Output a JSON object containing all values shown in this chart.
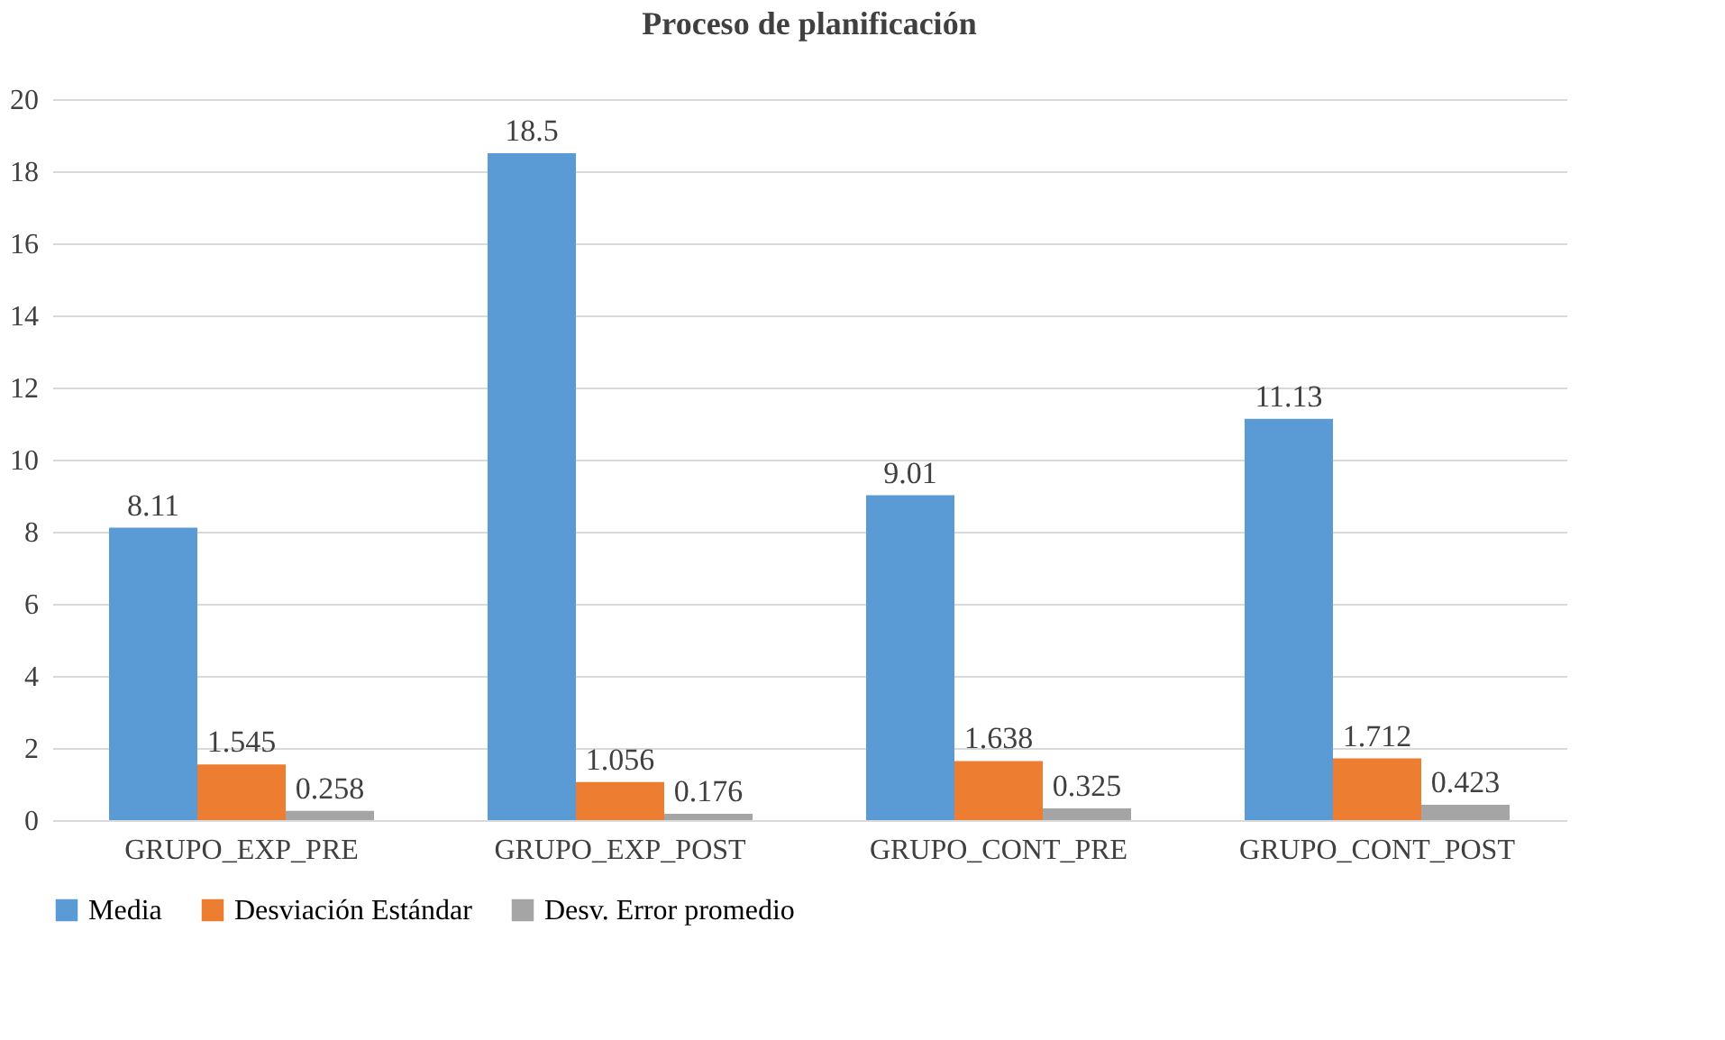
{
  "chart_data": {
    "type": "bar",
    "title": "Proceso de planificación",
    "categories": [
      "GRUPO_EXP_PRE",
      "GRUPO_EXP_POST",
      "GRUPO_CONT_PRE",
      "GRUPO_CONT_POST"
    ],
    "series": [
      {
        "name": "Media",
        "color": "#5b9bd5",
        "values": [
          8.11,
          18.5,
          9.01,
          11.13
        ]
      },
      {
        "name": "Desviación Estándar",
        "color": "#ed7d31",
        "values": [
          1.545,
          1.056,
          1.638,
          1.712
        ]
      },
      {
        "name": "Desv. Error promedio",
        "color": "#a5a5a5",
        "values": [
          0.258,
          0.176,
          0.325,
          0.423
        ]
      }
    ],
    "ylim": [
      0,
      20
    ],
    "yticks": [
      0,
      2,
      4,
      6,
      8,
      10,
      12,
      14,
      16,
      18,
      20
    ],
    "grid": "y",
    "legend": "bottom",
    "data_labels": true
  }
}
